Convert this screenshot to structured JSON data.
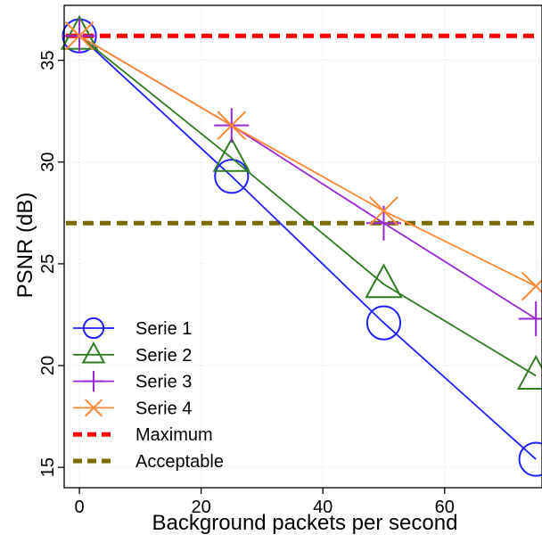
{
  "chart_data": {
    "type": "line",
    "title": "",
    "xlabel": "Background packets per second",
    "ylabel": "PSNR (dB)",
    "xlim": [
      -2.5,
      76
    ],
    "ylim": [
      14,
      37.7
    ],
    "x_ticks": [
      0,
      20,
      40,
      60
    ],
    "y_ticks": [
      15,
      20,
      25,
      30,
      35
    ],
    "x": [
      0,
      25,
      50,
      75
    ],
    "grid": true,
    "legend_position": "bottom-left",
    "series": [
      {
        "name": "Serie 1",
        "values": [
          36.2,
          29.3,
          22.1,
          15.4
        ],
        "color": "#1f1fff",
        "marker": "circle"
      },
      {
        "name": "Serie 2",
        "values": [
          36.2,
          30.2,
          24.0,
          19.5
        ],
        "color": "#2e7d1f",
        "marker": "triangle"
      },
      {
        "name": "Serie 3",
        "values": [
          36.2,
          31.8,
          27.0,
          22.3
        ],
        "color": "#9a27d6",
        "marker": "plus"
      },
      {
        "name": "Serie 4",
        "values": [
          36.2,
          31.8,
          27.6,
          23.9
        ],
        "color": "#ff8a33",
        "marker": "x"
      }
    ],
    "reference_lines": [
      {
        "name": "Maximum",
        "value": 36.2,
        "color": "#ff0000",
        "style": "dashed"
      },
      {
        "name": "Acceptable",
        "value": 27.0,
        "color": "#7a6a00",
        "style": "dashed"
      }
    ]
  }
}
